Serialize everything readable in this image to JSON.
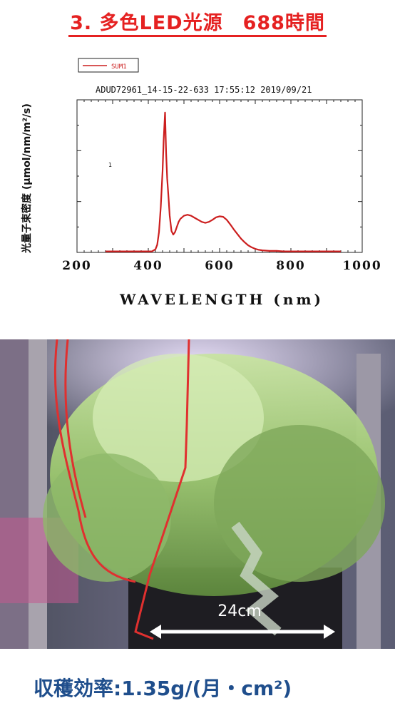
{
  "page": {
    "title": "3. 多色LED光源　688時間",
    "footer": "収穫効率:1.35g/(月・cm²)"
  },
  "chart_data": {
    "type": "line",
    "header": "ADUD72961_14-15-22-633 17:55:12  2019/09/21",
    "legend": {
      "entries": [
        "SUM1"
      ],
      "placement": "top-left"
    },
    "ylabel": "光量子束密度 (μmol/nm/m²/s)",
    "xlabel": "WAVELENGTH (nm)",
    "xlim": [
      200,
      1000
    ],
    "ylim": [
      0,
      3
    ],
    "xticks": [
      200,
      400,
      600,
      800,
      1000
    ],
    "y_annotation": "1",
    "color": "#cc1f1f",
    "series": [
      {
        "name": "SUM1",
        "x": [
          280,
          300,
          320,
          340,
          360,
          380,
          400,
          410,
          420,
          425,
          430,
          435,
          440,
          443,
          447,
          450,
          453,
          457,
          460,
          465,
          470,
          475,
          480,
          485,
          490,
          500,
          510,
          520,
          530,
          540,
          550,
          560,
          570,
          580,
          590,
          600,
          610,
          620,
          630,
          640,
          650,
          660,
          670,
          680,
          690,
          700,
          710,
          720,
          740,
          760,
          780,
          800,
          830,
          860,
          900,
          940
        ],
        "y": [
          0.02,
          0.02,
          0.02,
          0.02,
          0.02,
          0.02,
          0.02,
          0.02,
          0.06,
          0.15,
          0.4,
          0.9,
          1.6,
          2.2,
          2.75,
          1.95,
          1.45,
          1.05,
          0.72,
          0.42,
          0.35,
          0.4,
          0.5,
          0.6,
          0.66,
          0.72,
          0.74,
          0.72,
          0.68,
          0.64,
          0.6,
          0.58,
          0.6,
          0.64,
          0.69,
          0.71,
          0.7,
          0.64,
          0.55,
          0.45,
          0.36,
          0.27,
          0.2,
          0.14,
          0.1,
          0.07,
          0.05,
          0.04,
          0.03,
          0.03,
          0.02,
          0.02,
          0.02,
          0.02,
          0.02,
          0.02
        ]
      }
    ]
  },
  "photo": {
    "annotation": "24cm"
  }
}
